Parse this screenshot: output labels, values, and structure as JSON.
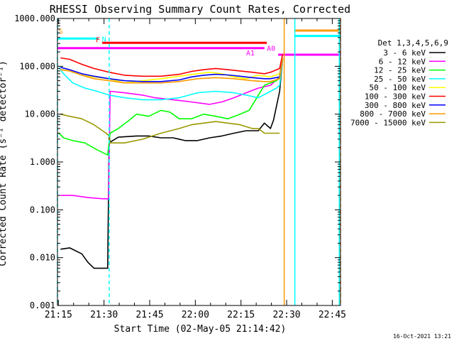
{
  "chart_data": {
    "type": "line",
    "title": "RHESSI Observing Summary Count Rates, Corrected",
    "xlabel": "Start Time (02-May-05 21:14:42)",
    "ylabel": "Corrected Count Rate (s⁻¹ detector⁻¹)",
    "ylabel_visible_fragment": "Corrected Count Rate (s^-1 detector^-1)",
    "yscale": "log",
    "ylim": [
      0.001,
      1000
    ],
    "xlim_minutes": [
      0,
      93
    ],
    "x_tick_labels": [
      "21:15",
      "21:30",
      "21:45",
      "22:00",
      "22:15",
      "22:30",
      "22:45"
    ],
    "x_tick_minutes": [
      0.3,
      15.3,
      30.3,
      45.3,
      60.3,
      75.3,
      90.3
    ],
    "y_tick_labels": [
      "1000.000",
      "100.000",
      "10.000",
      "1.000",
      "0.100",
      "0.010",
      "0.001"
    ],
    "y_tick_values": [
      1000,
      100,
      10,
      1,
      0.1,
      0.01,
      0.001
    ],
    "legend_title": "Det 1,3,4,5,6,9",
    "legend_position": "right",
    "footer_date": "16-Oct-2021 13:21",
    "series": [
      {
        "name": "3 - 6 keV",
        "color": "#000000",
        "x": [
          1,
          4,
          8,
          10,
          12,
          15,
          16.5,
          17,
          17.3,
          20,
          26,
          30,
          34,
          38,
          42,
          46,
          50,
          54,
          58,
          62,
          66,
          68,
          70,
          71,
          73,
          74
        ],
        "y": [
          0.015,
          0.016,
          0.012,
          0.008,
          0.006,
          0.006,
          0.006,
          3.8,
          2.6,
          3.3,
          3.5,
          3.5,
          3.2,
          3.2,
          2.8,
          2.8,
          3.2,
          3.5,
          4.0,
          4.5,
          4.5,
          6.5,
          5.0,
          7.5,
          30,
          150
        ]
      },
      {
        "name": "6 - 12 keV",
        "color": "#ff00ff",
        "x": [
          1,
          5,
          10,
          15,
          16.8,
          17.3,
          22,
          28,
          32,
          38,
          44,
          50,
          54,
          58,
          62,
          66,
          70,
          73,
          74
        ],
        "y": [
          0.2,
          0.2,
          0.18,
          0.17,
          0.17,
          30,
          28,
          25,
          22,
          20,
          18,
          16,
          18,
          22,
          28,
          35,
          40,
          60,
          150
        ]
      },
      {
        "name": "12 - 25 keV",
        "color": "#00ff00",
        "x": [
          0.5,
          2,
          5,
          9,
          13,
          16.5,
          17.3,
          20,
          23,
          26,
          30,
          34,
          37,
          40,
          44,
          48,
          52,
          56,
          60,
          63,
          66,
          68,
          70,
          72,
          73,
          74
        ],
        "y": [
          4,
          3.2,
          2.8,
          2.5,
          1.8,
          1.4,
          4,
          5,
          7,
          10,
          9,
          12,
          11,
          8,
          8,
          10,
          9,
          8,
          10,
          12,
          25,
          40,
          45,
          50,
          60,
          150
        ]
      },
      {
        "name": "25 - 50 keV",
        "color": "#00ffff",
        "x": [
          0.5,
          2,
          5,
          9,
          13,
          17,
          22,
          28,
          34,
          40,
          46,
          52,
          58,
          62,
          66,
          70,
          72,
          73,
          74
        ],
        "y": [
          95,
          70,
          45,
          35,
          30,
          25,
          22,
          20,
          20,
          22,
          28,
          30,
          28,
          25,
          22,
          30,
          35,
          40,
          150
        ]
      },
      {
        "name": "50 - 100 keV",
        "color": "#ffff00",
        "x": [
          1,
          4,
          8,
          12,
          17,
          22,
          28,
          34,
          40,
          46,
          50,
          54,
          58,
          62,
          66,
          70,
          73,
          74
        ],
        "y": [
          85,
          80,
          65,
          60,
          55,
          45,
          50,
          55,
          62,
          70,
          75,
          70,
          60,
          55,
          65,
          60,
          70,
          150
        ]
      },
      {
        "name": "100 - 300 keV",
        "color": "#ff0000",
        "x": [
          1,
          4,
          8,
          12,
          17,
          22,
          28,
          34,
          40,
          44,
          48,
          52,
          56,
          60,
          64,
          68,
          70,
          73,
          74
        ],
        "y": [
          150,
          140,
          110,
          90,
          75,
          65,
          62,
          62,
          68,
          78,
          85,
          90,
          85,
          80,
          75,
          70,
          75,
          90,
          180
        ]
      },
      {
        "name": "300 - 800 keV",
        "color": "#0000ff",
        "x": [
          1,
          4,
          8,
          12,
          17,
          22,
          28,
          34,
          40,
          44,
          48,
          52,
          56,
          60,
          64,
          68,
          70,
          73,
          74
        ],
        "y": [
          95,
          85,
          70,
          62,
          55,
          50,
          48,
          48,
          52,
          60,
          65,
          68,
          66,
          62,
          58,
          55,
          55,
          60,
          150
        ]
      },
      {
        "name": "800 - 7000 keV",
        "color": "#ff9900",
        "x": [
          1,
          4,
          8,
          12,
          17,
          22,
          28,
          34,
          40,
          46,
          52,
          58,
          64,
          68,
          70,
          73,
          74
        ],
        "y": [
          85,
          80,
          65,
          55,
          50,
          45,
          45,
          45,
          48,
          55,
          58,
          55,
          50,
          48,
          48,
          55,
          150
        ]
      },
      {
        "name": "7000 - 15000 keV",
        "color": "#999900",
        "x": [
          1,
          4,
          8,
          12,
          16,
          17,
          17.3,
          22,
          28,
          34,
          40,
          44,
          48,
          52,
          56,
          60,
          64,
          66,
          68,
          70,
          72,
          73
        ],
        "y": [
          10,
          9,
          8,
          6,
          4,
          3.5,
          2.5,
          2.5,
          3,
          4,
          5,
          6,
          6.5,
          7,
          6.5,
          6,
          5,
          5,
          4,
          4,
          4,
          4
        ]
      }
    ],
    "flag_bars": [
      {
        "label": "S",
        "color": "#ff9900",
        "label_x": 0.4,
        "label_y": 480
      },
      {
        "label": "",
        "color": "#00ffff",
        "x0": 0,
        "x1": 13.5,
        "y": 380
      },
      {
        "label": "N",
        "color": "#00ffff",
        "label_x": 14.6,
        "label_y": 330
      },
      {
        "label": "F",
        "color": "#ff0000",
        "x0": 14.7,
        "x1": 68.8,
        "y": 310,
        "label_x": 12.6,
        "label_y": 320
      },
      {
        "label": "",
        "color": "#ff00ff",
        "x0": 0,
        "x1": 68,
        "y": 240
      },
      {
        "label": "A0",
        "color": "#ff00ff",
        "label_x": 68.8,
        "label_y": 210
      },
      {
        "label": "A1",
        "color": "#ff00ff",
        "x0": 72.5,
        "x1": 93,
        "y": 175,
        "label_x": 62,
        "label_y": 170
      },
      {
        "label": "",
        "color": "#ff9900",
        "x0": 77.8,
        "x1": 93,
        "y": 560
      },
      {
        "label": "",
        "color": "#00ffff",
        "x0": 77.8,
        "x1": 93,
        "y": 430
      }
    ],
    "vertical_markers": [
      {
        "color": "#00ffff",
        "style": "dashed",
        "x": 0
      },
      {
        "color": "#00ffff",
        "style": "dashed",
        "x": 17
      },
      {
        "color": "#ff9900",
        "style": "solid",
        "x": 74.5
      },
      {
        "color": "#00ffff",
        "style": "solid",
        "x": 78
      },
      {
        "color": "#ff9900",
        "style": "dashed",
        "x": 93
      },
      {
        "color": "#00ffff",
        "style": "solid",
        "x": 92.6
      }
    ]
  }
}
